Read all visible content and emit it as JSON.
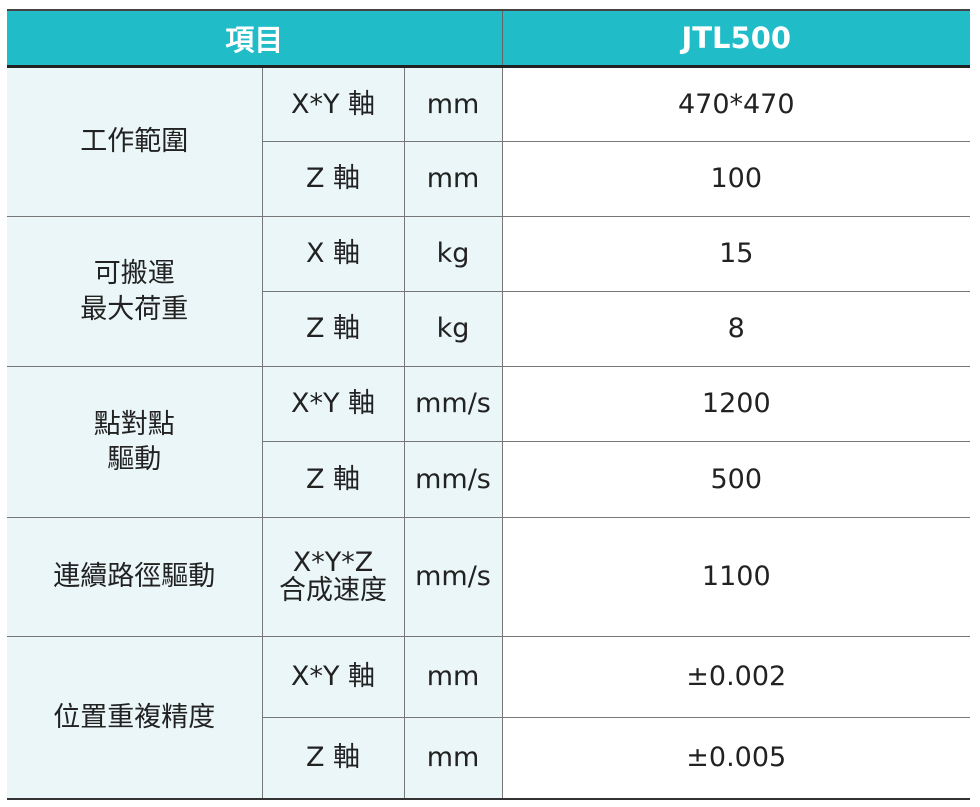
{
  "header": {
    "item": "項目",
    "model": "JTL500"
  },
  "groups": [
    {
      "label": "工作範圍",
      "rows": [
        {
          "axis": "X*Y 軸",
          "unit": "mm",
          "value": "470*470"
        },
        {
          "axis": "Z 軸",
          "unit": "mm",
          "value": "100"
        }
      ]
    },
    {
      "label": "可搬運\n最大荷重",
      "rows": [
        {
          "axis": "X 軸",
          "unit": "kg",
          "value": "15"
        },
        {
          "axis": "Z 軸",
          "unit": "kg",
          "value": "8"
        }
      ]
    },
    {
      "label": "點對點\n驅動",
      "rows": [
        {
          "axis": "X*Y 軸",
          "unit": "mm/s",
          "value": "1200"
        },
        {
          "axis": "Z 軸",
          "unit": "mm/s",
          "value": "500"
        }
      ]
    },
    {
      "label": "連續路徑驅動",
      "rows": [
        {
          "axis": "X*Y*Z\n合成速度",
          "unit": "mm/s",
          "value": "1100"
        }
      ]
    },
    {
      "label": "位置重複精度",
      "rows": [
        {
          "axis": "X*Y 軸",
          "unit": "mm",
          "value": "±0.002"
        },
        {
          "axis": "Z 軸",
          "unit": "mm",
          "value": "±0.005"
        }
      ]
    }
  ]
}
